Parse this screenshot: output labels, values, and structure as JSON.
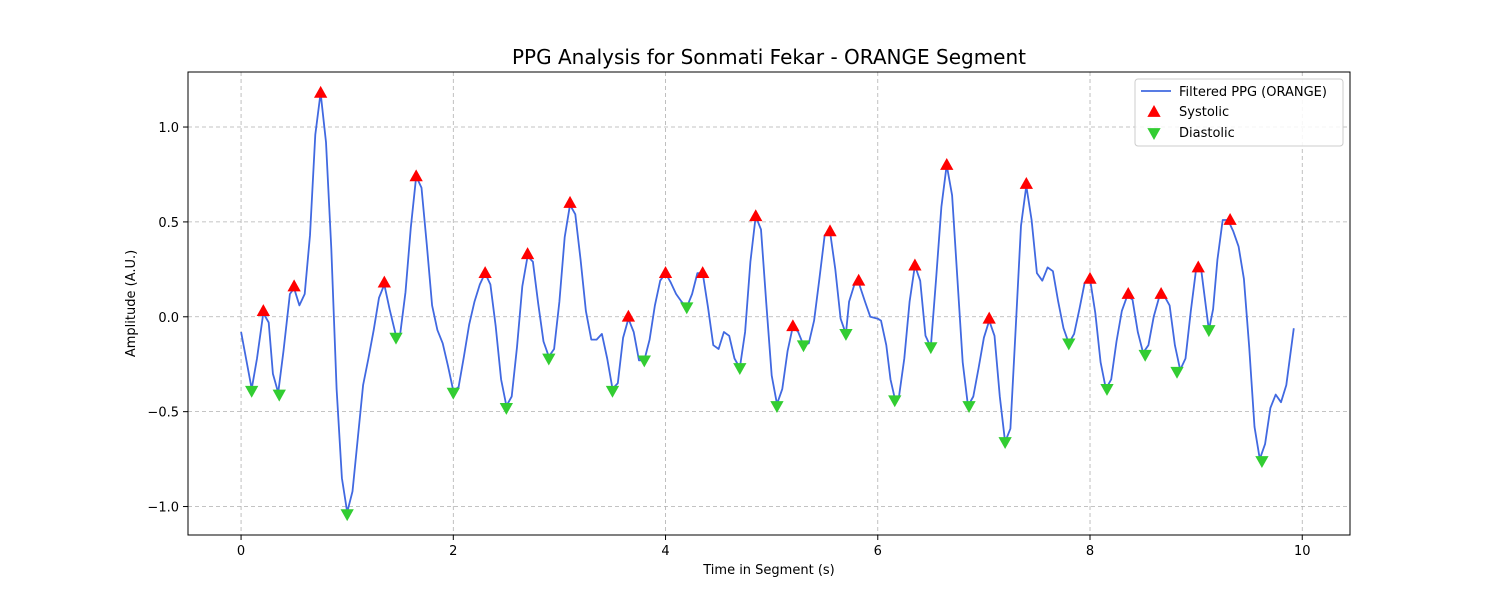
{
  "chart_data": {
    "type": "line",
    "title": "PPG Analysis for Sonmati Fekar - ORANGE Segment",
    "xlabel": "Time in Segment (s)",
    "ylabel": "Amplitude (A.U.)",
    "xlim": [
      -0.5,
      10.45
    ],
    "ylim": [
      -1.15,
      1.29
    ],
    "xticks": [
      0,
      2,
      4,
      6,
      8,
      10
    ],
    "yticks": [
      -1.0,
      -0.5,
      0.0,
      0.5,
      1.0
    ],
    "xtick_labels": [
      "0",
      "2",
      "4",
      "6",
      "8",
      "10"
    ],
    "ytick_labels": [
      "−1.0",
      "−0.5",
      "0.0",
      "0.5",
      "1.0"
    ],
    "grid": true,
    "legend_position": "top-right",
    "colors": {
      "signal": "#4169e1",
      "systolic": "#ff0000",
      "diastolic": "#32cd32"
    },
    "series": [
      {
        "name": "Filtered PPG (ORANGE)",
        "kind": "line",
        "points": [
          [
            0.0,
            -0.08
          ],
          [
            0.1,
            -0.38
          ],
          [
            0.15,
            -0.22
          ],
          [
            0.21,
            0.02
          ],
          [
            0.26,
            -0.03
          ],
          [
            0.3,
            -0.3
          ],
          [
            0.35,
            -0.4
          ],
          [
            0.4,
            -0.18
          ],
          [
            0.46,
            0.12
          ],
          [
            0.5,
            0.15
          ],
          [
            0.55,
            0.06
          ],
          [
            0.6,
            0.12
          ],
          [
            0.65,
            0.43
          ],
          [
            0.7,
            0.96
          ],
          [
            0.75,
            1.18
          ],
          [
            0.8,
            0.92
          ],
          [
            0.85,
            0.36
          ],
          [
            0.9,
            -0.38
          ],
          [
            0.95,
            -0.85
          ],
          [
            1.0,
            -1.03
          ],
          [
            1.05,
            -0.92
          ],
          [
            1.1,
            -0.64
          ],
          [
            1.15,
            -0.36
          ],
          [
            1.2,
            -0.22
          ],
          [
            1.25,
            -0.07
          ],
          [
            1.3,
            0.1
          ],
          [
            1.35,
            0.17
          ],
          [
            1.4,
            0.04
          ],
          [
            1.46,
            -0.1
          ],
          [
            1.5,
            -0.09
          ],
          [
            1.55,
            0.13
          ],
          [
            1.6,
            0.47
          ],
          [
            1.65,
            0.74
          ],
          [
            1.7,
            0.68
          ],
          [
            1.75,
            0.38
          ],
          [
            1.8,
            0.06
          ],
          [
            1.85,
            -0.07
          ],
          [
            1.9,
            -0.14
          ],
          [
            1.95,
            -0.26
          ],
          [
            2.0,
            -0.39
          ],
          [
            2.05,
            -0.37
          ],
          [
            2.1,
            -0.21
          ],
          [
            2.15,
            -0.04
          ],
          [
            2.2,
            0.08
          ],
          [
            2.25,
            0.17
          ],
          [
            2.3,
            0.23
          ],
          [
            2.35,
            0.17
          ],
          [
            2.4,
            -0.05
          ],
          [
            2.45,
            -0.33
          ],
          [
            2.5,
            -0.47
          ],
          [
            2.55,
            -0.42
          ],
          [
            2.6,
            -0.16
          ],
          [
            2.65,
            0.16
          ],
          [
            2.7,
            0.32
          ],
          [
            2.75,
            0.29
          ],
          [
            2.8,
            0.07
          ],
          [
            2.85,
            -0.13
          ],
          [
            2.9,
            -0.21
          ],
          [
            2.95,
            -0.17
          ],
          [
            3.0,
            0.08
          ],
          [
            3.05,
            0.42
          ],
          [
            3.1,
            0.59
          ],
          [
            3.15,
            0.54
          ],
          [
            3.2,
            0.3
          ],
          [
            3.25,
            0.03
          ],
          [
            3.3,
            -0.12
          ],
          [
            3.35,
            -0.12
          ],
          [
            3.4,
            -0.09
          ],
          [
            3.45,
            -0.22
          ],
          [
            3.5,
            -0.38
          ],
          [
            3.55,
            -0.35
          ],
          [
            3.6,
            -0.11
          ],
          [
            3.65,
            -0.01
          ],
          [
            3.7,
            -0.08
          ],
          [
            3.75,
            -0.23
          ],
          [
            3.8,
            -0.23
          ],
          [
            3.85,
            -0.12
          ],
          [
            3.9,
            0.06
          ],
          [
            3.95,
            0.19
          ],
          [
            4.0,
            0.23
          ],
          [
            4.05,
            0.18
          ],
          [
            4.1,
            0.12
          ],
          [
            4.15,
            0.08
          ],
          [
            4.2,
            0.05
          ],
          [
            4.25,
            0.12
          ],
          [
            4.3,
            0.23
          ],
          [
            4.35,
            0.23
          ],
          [
            4.4,
            0.05
          ],
          [
            4.45,
            -0.15
          ],
          [
            4.5,
            -0.17
          ],
          [
            4.55,
            -0.08
          ],
          [
            4.6,
            -0.1
          ],
          [
            4.65,
            -0.22
          ],
          [
            4.7,
            -0.27
          ],
          [
            4.75,
            -0.08
          ],
          [
            4.8,
            0.29
          ],
          [
            4.85,
            0.53
          ],
          [
            4.9,
            0.46
          ],
          [
            4.95,
            0.07
          ],
          [
            5.0,
            -0.31
          ],
          [
            5.05,
            -0.46
          ],
          [
            5.1,
            -0.38
          ],
          [
            5.15,
            -0.18
          ],
          [
            5.2,
            -0.05
          ],
          [
            5.25,
            -0.08
          ],
          [
            5.3,
            -0.15
          ],
          [
            5.35,
            -0.14
          ],
          [
            5.4,
            -0.02
          ],
          [
            5.45,
            0.2
          ],
          [
            5.5,
            0.43
          ],
          [
            5.55,
            0.45
          ],
          [
            5.6,
            0.25
          ],
          [
            5.65,
            -0.01
          ],
          [
            5.7,
            -0.09
          ],
          [
            5.73,
            0.08
          ],
          [
            5.78,
            0.17
          ],
          [
            5.82,
            0.18
          ],
          [
            5.88,
            0.08
          ],
          [
            5.93,
            0.0
          ],
          [
            6.0,
            -0.01
          ],
          [
            6.03,
            -0.02
          ],
          [
            6.08,
            -0.15
          ],
          [
            6.12,
            -0.33
          ],
          [
            6.16,
            -0.43
          ],
          [
            6.2,
            -0.42
          ],
          [
            6.25,
            -0.22
          ],
          [
            6.3,
            0.08
          ],
          [
            6.35,
            0.27
          ],
          [
            6.4,
            0.19
          ],
          [
            6.45,
            -0.1
          ],
          [
            6.5,
            -0.16
          ],
          [
            6.55,
            0.2
          ],
          [
            6.6,
            0.58
          ],
          [
            6.65,
            0.8
          ],
          [
            6.7,
            0.64
          ],
          [
            6.75,
            0.2
          ],
          [
            6.8,
            -0.24
          ],
          [
            6.85,
            -0.47
          ],
          [
            6.9,
            -0.42
          ],
          [
            6.95,
            -0.27
          ],
          [
            7.0,
            -0.11
          ],
          [
            7.05,
            -0.02
          ],
          [
            7.1,
            -0.1
          ],
          [
            7.15,
            -0.42
          ],
          [
            7.2,
            -0.66
          ],
          [
            7.25,
            -0.59
          ],
          [
            7.3,
            -0.06
          ],
          [
            7.35,
            0.48
          ],
          [
            7.4,
            0.69
          ],
          [
            7.45,
            0.51
          ],
          [
            7.5,
            0.23
          ],
          [
            7.55,
            0.19
          ],
          [
            7.6,
            0.26
          ],
          [
            7.65,
            0.24
          ],
          [
            7.7,
            0.08
          ],
          [
            7.75,
            -0.06
          ],
          [
            7.8,
            -0.14
          ],
          [
            7.85,
            -0.09
          ],
          [
            7.9,
            0.04
          ],
          [
            7.95,
            0.18
          ],
          [
            8.0,
            0.2
          ],
          [
            8.05,
            0.02
          ],
          [
            8.1,
            -0.24
          ],
          [
            8.15,
            -0.38
          ],
          [
            8.2,
            -0.33
          ],
          [
            8.25,
            -0.13
          ],
          [
            8.3,
            0.03
          ],
          [
            8.35,
            0.11
          ],
          [
            8.4,
            0.09
          ],
          [
            8.45,
            -0.08
          ],
          [
            8.5,
            -0.19
          ],
          [
            8.55,
            -0.15
          ],
          [
            8.6,
            0.0
          ],
          [
            8.65,
            0.1
          ],
          [
            8.7,
            0.11
          ],
          [
            8.75,
            0.06
          ],
          [
            8.8,
            -0.15
          ],
          [
            8.85,
            -0.28
          ],
          [
            8.9,
            -0.22
          ],
          [
            8.95,
            0.03
          ],
          [
            9.0,
            0.25
          ],
          [
            9.05,
            0.24
          ],
          [
            9.1,
            0.02
          ],
          [
            9.12,
            -0.07
          ],
          [
            9.16,
            0.04
          ],
          [
            9.2,
            0.3
          ],
          [
            9.25,
            0.51
          ],
          [
            9.3,
            0.51
          ],
          [
            9.35,
            0.45
          ],
          [
            9.4,
            0.37
          ],
          [
            9.45,
            0.2
          ],
          [
            9.5,
            -0.16
          ],
          [
            9.55,
            -0.58
          ],
          [
            9.6,
            -0.75
          ],
          [
            9.65,
            -0.67
          ],
          [
            9.7,
            -0.48
          ],
          [
            9.75,
            -0.41
          ],
          [
            9.8,
            -0.45
          ],
          [
            9.85,
            -0.36
          ],
          [
            9.92,
            -0.06
          ]
        ]
      },
      {
        "name": "Systolic",
        "kind": "marker",
        "marker": "triangle-up",
        "points": [
          [
            0.21,
            0.03
          ],
          [
            0.5,
            0.16
          ],
          [
            0.75,
            1.18
          ],
          [
            1.35,
            0.18
          ],
          [
            1.65,
            0.74
          ],
          [
            2.3,
            0.23
          ],
          [
            2.7,
            0.33
          ],
          [
            3.1,
            0.6
          ],
          [
            3.65,
            0.0
          ],
          [
            4.0,
            0.23
          ],
          [
            4.35,
            0.23
          ],
          [
            4.85,
            0.53
          ],
          [
            5.2,
            -0.05
          ],
          [
            5.55,
            0.45
          ],
          [
            5.82,
            0.19
          ],
          [
            6.35,
            0.27
          ],
          [
            6.65,
            0.8
          ],
          [
            7.05,
            -0.01
          ],
          [
            7.4,
            0.7
          ],
          [
            8.0,
            0.2
          ],
          [
            8.36,
            0.12
          ],
          [
            8.67,
            0.12
          ],
          [
            9.02,
            0.26
          ],
          [
            9.32,
            0.51
          ]
        ]
      },
      {
        "name": "Diastolic",
        "kind": "marker",
        "marker": "triangle-down",
        "points": [
          [
            0.1,
            -0.39
          ],
          [
            0.36,
            -0.41
          ],
          [
            1.0,
            -1.04
          ],
          [
            1.46,
            -0.11
          ],
          [
            2.0,
            -0.4
          ],
          [
            2.5,
            -0.48
          ],
          [
            2.9,
            -0.22
          ],
          [
            3.5,
            -0.39
          ],
          [
            3.8,
            -0.23
          ],
          [
            4.2,
            0.05
          ],
          [
            4.7,
            -0.27
          ],
          [
            5.05,
            -0.47
          ],
          [
            5.3,
            -0.15
          ],
          [
            5.7,
            -0.09
          ],
          [
            6.16,
            -0.44
          ],
          [
            6.5,
            -0.16
          ],
          [
            6.86,
            -0.47
          ],
          [
            7.2,
            -0.66
          ],
          [
            7.8,
            -0.14
          ],
          [
            8.16,
            -0.38
          ],
          [
            8.52,
            -0.2
          ],
          [
            8.82,
            -0.29
          ],
          [
            9.12,
            -0.07
          ],
          [
            9.62,
            -0.76
          ]
        ]
      }
    ]
  }
}
